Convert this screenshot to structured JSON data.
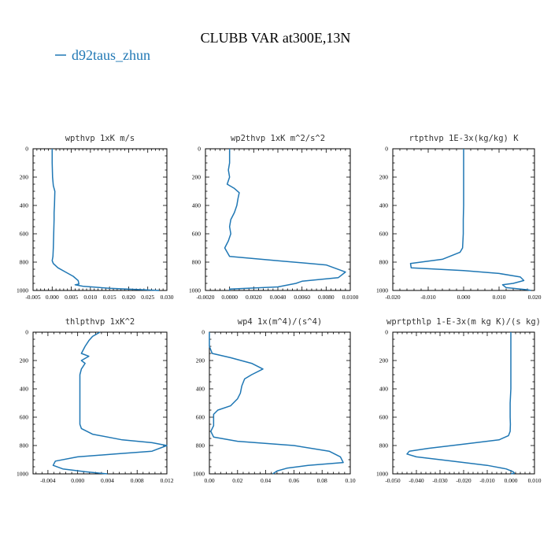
{
  "title": "CLUBB VAR at300E,13N",
  "legend": {
    "label": "d92taus_zhun",
    "color": "#1f77b4"
  },
  "chart_data": [
    {
      "type": "line",
      "title": "wpthvp  1xK m/s",
      "xlim": [
        -0.005,
        0.03
      ],
      "ylim": [
        1000,
        0
      ],
      "x_ticks": [
        "-0.005",
        "0.000",
        "0.005",
        "0.010",
        "0.015",
        "0.020",
        "0.025",
        "0.030"
      ],
      "y_ticks": [
        "0",
        "200",
        "400",
        "600",
        "800",
        "1000"
      ],
      "series": [
        {
          "color": "#1f77b4",
          "x": [
            0.0,
            0.0,
            0.0001,
            0.0003,
            0.0007,
            0.0006,
            0.0005,
            0.0005,
            0.0004,
            0.0003,
            0.0002,
            0.0,
            0.0003,
            0.0015,
            0.0035,
            0.0055,
            0.0068,
            0.007,
            0.006,
            0.008,
            0.015,
            0.028
          ],
          "y": [
            0,
            100,
            200,
            260,
            300,
            400,
            450,
            500,
            600,
            700,
            760,
            790,
            810,
            840,
            870,
            900,
            930,
            955,
            960,
            970,
            985,
            1000
          ]
        }
      ]
    },
    {
      "type": "line",
      "title": "wp2thvp  1xK m^2/s^2",
      "xlim": [
        -0.002,
        0.01
      ],
      "ylim": [
        1000,
        0
      ],
      "x_ticks": [
        "-0.0020",
        "0.0000",
        "0.0020",
        "0.0040",
        "0.0060",
        "0.0080",
        "0.0100"
      ],
      "y_ticks": [
        "0",
        "200",
        "400",
        "600",
        "800",
        "1000"
      ],
      "series": [
        {
          "color": "#1f77b4",
          "x": [
            0.0,
            0.0,
            -0.0001,
            0.0,
            -0.0002,
            0.0004,
            0.0008,
            0.0007,
            0.0006,
            0.0004,
            0.0001,
            0.0,
            0.0001,
            -0.0001,
            -0.0004,
            0.0,
            0.004,
            0.008,
            0.0096,
            0.009,
            0.006,
            0.0055,
            0.004,
            0.0,
            0.0
          ],
          "y": [
            0,
            100,
            150,
            200,
            250,
            280,
            310,
            350,
            400,
            450,
            500,
            550,
            600,
            650,
            700,
            760,
            790,
            820,
            870,
            910,
            935,
            950,
            975,
            990,
            1000
          ]
        }
      ]
    },
    {
      "type": "line",
      "title": "rtpthvp  1E-3x(kg/kg) K",
      "xlim": [
        -0.02,
        0.02
      ],
      "ylim": [
        1000,
        0
      ],
      "x_ticks": [
        "-0.020",
        "-0.010",
        "0.000",
        "0.010",
        "0.020"
      ],
      "y_ticks": [
        "0",
        "200",
        "400",
        "600",
        "800",
        "1000"
      ],
      "series": [
        {
          "color": "#1f77b4",
          "x": [
            0.0,
            0.0,
            0.0,
            -0.0001,
            -0.0001,
            -0.0002,
            -0.0003,
            -0.001,
            -0.006,
            -0.015,
            -0.0148,
            0.0,
            0.01,
            0.016,
            0.017,
            0.014,
            0.011,
            0.012,
            0.018,
            0.019
          ],
          "y": [
            0,
            200,
            400,
            500,
            600,
            650,
            700,
            730,
            780,
            810,
            840,
            860,
            880,
            905,
            930,
            950,
            960,
            980,
            995,
            1000
          ]
        }
      ]
    },
    {
      "type": "line",
      "title": "thlpthvp  1xK^2",
      "xlim": [
        -0.006,
        0.012
      ],
      "ylim": [
        1000,
        0
      ],
      "x_ticks": [
        "-0.004",
        "0.000",
        "0.004",
        "0.008",
        "0.012"
      ],
      "y_ticks": [
        "0",
        "200",
        "400",
        "600",
        "800",
        "1000"
      ],
      "series": [
        {
          "color": "#1f77b4",
          "x": [
            0.003,
            0.002,
            0.0015,
            0.001,
            0.0005,
            0.0015,
            0.0005,
            0.001,
            0.0005,
            0.0003,
            0.0003,
            0.0003,
            0.0003,
            0.0003,
            0.0005,
            0.002,
            0.006,
            0.01,
            0.012,
            0.01,
            0.005,
            0.0,
            -0.003,
            -0.0033,
            -0.002,
            0.001,
            0.004
          ],
          "y": [
            0,
            30,
            60,
            100,
            150,
            170,
            200,
            220,
            260,
            300,
            400,
            500,
            600,
            650,
            680,
            720,
            760,
            780,
            800,
            840,
            860,
            880,
            910,
            940,
            965,
            985,
            1000
          ]
        }
      ]
    },
    {
      "type": "line",
      "title": "wp4  1x(m^4)/(s^4)",
      "xlim": [
        0.0,
        0.1
      ],
      "ylim": [
        1000,
        0
      ],
      "x_ticks": [
        "0.00",
        "0.02",
        "0.04",
        "0.06",
        "0.08",
        "0.10"
      ],
      "y_ticks": [
        "0",
        "200",
        "400",
        "600",
        "800",
        "1000"
      ],
      "series": [
        {
          "color": "#1f77b4",
          "x": [
            0.0,
            0.0,
            0.002,
            0.015,
            0.03,
            0.038,
            0.03,
            0.025,
            0.023,
            0.022,
            0.02,
            0.015,
            0.006,
            0.003,
            0.003,
            0.003,
            0.001,
            0.003,
            0.02,
            0.06,
            0.085,
            0.093,
            0.095,
            0.07,
            0.055,
            0.048,
            0.045
          ],
          "y": [
            0,
            100,
            150,
            180,
            220,
            260,
            300,
            330,
            380,
            430,
            470,
            520,
            550,
            580,
            620,
            660,
            700,
            740,
            770,
            800,
            840,
            880,
            920,
            940,
            960,
            980,
            1000
          ]
        }
      ]
    },
    {
      "type": "line",
      "title": "wprtpthlp  1-E-3x(m kg K)/(s kg)",
      "xlim": [
        -0.05,
        0.01
      ],
      "ylim": [
        1000,
        0
      ],
      "x_ticks": [
        "-0.050",
        "-0.040",
        "-0.030",
        "-0.020",
        "-0.010",
        "0.000",
        "0.010"
      ],
      "y_ticks": [
        "0",
        "200",
        "400",
        "600",
        "800",
        "1000"
      ],
      "series": [
        {
          "color": "#1f77b4",
          "x": [
            0.0,
            0.0,
            0.0,
            -0.0003,
            -0.0003,
            -0.0002,
            -0.0003,
            -0.001,
            -0.005,
            -0.02,
            -0.035,
            -0.043,
            -0.044,
            -0.04,
            -0.025,
            -0.01,
            -0.002,
            0.001,
            0.0015,
            0.0
          ],
          "y": [
            0,
            200,
            400,
            500,
            600,
            650,
            700,
            730,
            760,
            790,
            820,
            840,
            860,
            880,
            910,
            940,
            965,
            985,
            995,
            1000
          ]
        }
      ]
    }
  ]
}
